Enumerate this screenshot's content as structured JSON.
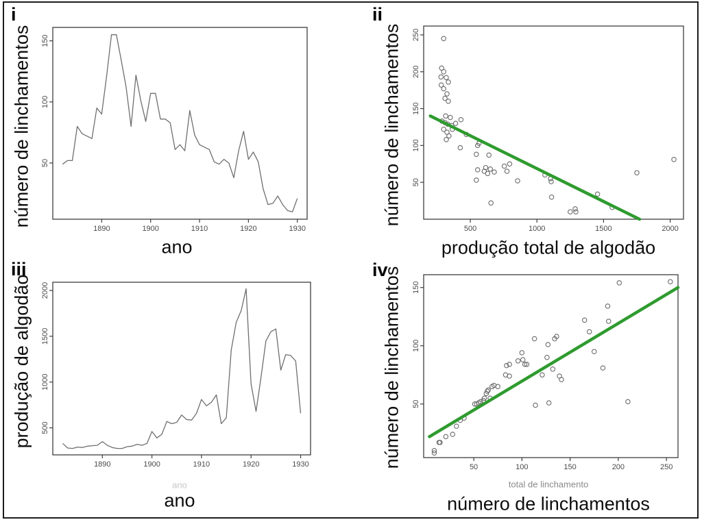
{
  "figure": {
    "background": "#ffffff",
    "border_color": "#1c1c1c",
    "series_gray": "#6e6e6e",
    "regression_green": "#2e9b2e"
  },
  "chart_data": [
    {
      "id": "i",
      "panel_label": "i",
      "type": "line",
      "title": "",
      "xlabel": "ano",
      "ylabel": "número de linchamentos",
      "xlim": [
        1880,
        1932
      ],
      "ylim": [
        4,
        161
      ],
      "xticks": [
        1890,
        1900,
        1910,
        1920,
        1930
      ],
      "yticks": [
        50,
        100,
        150
      ],
      "grid": false,
      "line_color": "#6e6e6e",
      "x": [
        1882,
        1883,
        1884,
        1885,
        1886,
        1887,
        1888,
        1889,
        1890,
        1891,
        1892,
        1893,
        1894,
        1895,
        1896,
        1897,
        1898,
        1899,
        1900,
        1901,
        1902,
        1903,
        1904,
        1905,
        1906,
        1907,
        1908,
        1909,
        1910,
        1911,
        1912,
        1913,
        1914,
        1915,
        1916,
        1917,
        1918,
        1919,
        1920,
        1921,
        1922,
        1923,
        1924,
        1925,
        1926,
        1927,
        1928,
        1929,
        1930
      ],
      "y": [
        49,
        52,
        52,
        80,
        74,
        72,
        70,
        95,
        90,
        121,
        155,
        155,
        134,
        112,
        80,
        122,
        101,
        84,
        107,
        107,
        86,
        86,
        83,
        61,
        65,
        60,
        93,
        73,
        65,
        63,
        61,
        51,
        49,
        53,
        50,
        38,
        60,
        76,
        53,
        59,
        51,
        29,
        16,
        17,
        23,
        16,
        11,
        10,
        21
      ]
    },
    {
      "id": "ii",
      "panel_label": "ii",
      "type": "scatter",
      "title": "",
      "xlabel": "produção total de algodão",
      "ylabel": "número de linchamentos",
      "xlim": [
        150,
        2100
      ],
      "ylim": [
        0,
        262
      ],
      "xticks": [
        500,
        1000,
        1500,
        2000
      ],
      "yticks": [
        50,
        100,
        150,
        200,
        250
      ],
      "grid": false,
      "point_color": "#6a6a6a",
      "points": [
        [
          300,
          245
        ],
        [
          285,
          205
        ],
        [
          300,
          200
        ],
        [
          280,
          193
        ],
        [
          320,
          192
        ],
        [
          335,
          186
        ],
        [
          282,
          182
        ],
        [
          300,
          177
        ],
        [
          325,
          170
        ],
        [
          310,
          164
        ],
        [
          335,
          160
        ],
        [
          315,
          140
        ],
        [
          350,
          138
        ],
        [
          287,
          133
        ],
        [
          310,
          131
        ],
        [
          330,
          129
        ],
        [
          360,
          127
        ],
        [
          300,
          122
        ],
        [
          325,
          118
        ],
        [
          365,
          122
        ],
        [
          390,
          130
        ],
        [
          340,
          113
        ],
        [
          320,
          108
        ],
        [
          430,
          135
        ],
        [
          470,
          115
        ],
        [
          425,
          97
        ],
        [
          555,
          100
        ],
        [
          565,
          103
        ],
        [
          545,
          88
        ],
        [
          640,
          87
        ],
        [
          555,
          67
        ],
        [
          605,
          65
        ],
        [
          615,
          70
        ],
        [
          630,
          62
        ],
        [
          650,
          68
        ],
        [
          680,
          64
        ],
        [
          755,
          72
        ],
        [
          795,
          75
        ],
        [
          775,
          65
        ],
        [
          855,
          52
        ],
        [
          545,
          53
        ],
        [
          655,
          22
        ],
        [
          1060,
          60
        ],
        [
          1102,
          55
        ],
        [
          1107,
          51
        ],
        [
          1110,
          30
        ],
        [
          1250,
          10
        ],
        [
          1287,
          14
        ],
        [
          1292,
          10
        ],
        [
          1455,
          34
        ],
        [
          1565,
          16
        ],
        [
          1750,
          63
        ],
        [
          2028,
          81
        ]
      ],
      "fit_line": {
        "points": [
          [
            200,
            140
          ],
          [
            1770,
            0
          ]
        ],
        "color": "#2e9b2e"
      }
    },
    {
      "id": "iii",
      "panel_label": "iii",
      "type": "line",
      "title": "",
      "xlabel": "ano",
      "xlabel_small": "ano",
      "ylabel": "produção de algodão",
      "xlim": [
        1880,
        1932
      ],
      "ylim": [
        205,
        2090
      ],
      "xticks": [
        1890,
        1900,
        1910,
        1920,
        1930
      ],
      "yticks": [
        500,
        1000,
        1500,
        2000
      ],
      "grid": false,
      "line_color": "#6e6e6e",
      "x": [
        1882,
        1883,
        1884,
        1885,
        1886,
        1887,
        1888,
        1889,
        1890,
        1891,
        1892,
        1893,
        1894,
        1895,
        1896,
        1897,
        1898,
        1899,
        1900,
        1901,
        1902,
        1903,
        1904,
        1905,
        1906,
        1907,
        1908,
        1909,
        1910,
        1911,
        1912,
        1913,
        1914,
        1915,
        1916,
        1917,
        1918,
        1919,
        1920,
        1921,
        1922,
        1923,
        1924,
        1925,
        1926,
        1927,
        1928,
        1929,
        1930
      ],
      "y": [
        330,
        280,
        275,
        290,
        285,
        300,
        305,
        310,
        350,
        310,
        285,
        275,
        275,
        295,
        300,
        320,
        310,
        330,
        460,
        390,
        430,
        570,
        545,
        560,
        640,
        590,
        585,
        660,
        810,
        740,
        780,
        860,
        545,
        610,
        1350,
        1650,
        1780,
        2020,
        980,
        680,
        1050,
        1450,
        1550,
        1580,
        1130,
        1300,
        1290,
        1230,
        660
      ]
    },
    {
      "id": "iv",
      "panel_label": "iv",
      "type": "scatter",
      "title": "",
      "xlabel": "número de linchamentos",
      "xlabel_small": "total de linchamento",
      "ylabel": "número de linchamentos",
      "xlim": [
        -2,
        262
      ],
      "ylim": [
        4,
        161
      ],
      "xticks": [
        50,
        100,
        150,
        200,
        250
      ],
      "yticks": [
        50,
        100,
        150
      ],
      "grid": false,
      "point_color": "#6a6a6a",
      "points": [
        [
          9,
          10
        ],
        [
          9,
          8
        ],
        [
          14,
          17
        ],
        [
          15,
          17
        ],
        [
          21,
          22
        ],
        [
          28,
          24
        ],
        [
          32,
          31
        ],
        [
          36,
          36
        ],
        [
          40,
          38
        ],
        [
          51,
          50
        ],
        [
          53,
          50
        ],
        [
          55,
          51
        ],
        [
          57,
          52
        ],
        [
          60,
          53
        ],
        [
          61,
          55
        ],
        [
          63,
          59
        ],
        [
          64,
          61
        ],
        [
          65,
          62
        ],
        [
          67,
          55
        ],
        [
          69,
          65
        ],
        [
          71,
          66
        ],
        [
          75,
          65
        ],
        [
          83,
          75
        ],
        [
          84,
          83
        ],
        [
          87,
          84
        ],
        [
          87,
          74
        ],
        [
          96,
          87
        ],
        [
          100,
          94
        ],
        [
          101,
          88
        ],
        [
          103,
          84
        ],
        [
          105,
          84
        ],
        [
          113,
          106
        ],
        [
          114,
          49
        ],
        [
          121,
          75
        ],
        [
          126,
          90
        ],
        [
          127,
          101
        ],
        [
          128,
          51
        ],
        [
          132,
          80
        ],
        [
          134,
          106
        ],
        [
          136,
          108
        ],
        [
          139,
          74
        ],
        [
          141,
          71
        ],
        [
          165,
          122
        ],
        [
          170,
          112
        ],
        [
          175,
          95
        ],
        [
          184,
          81
        ],
        [
          189,
          134
        ],
        [
          190,
          121
        ],
        [
          201,
          154
        ],
        [
          210,
          52
        ],
        [
          254,
          155
        ]
      ],
      "fit_line": {
        "points": [
          [
            4,
            22
          ],
          [
            262,
            150
          ]
        ],
        "color": "#2e9b2e"
      }
    }
  ]
}
